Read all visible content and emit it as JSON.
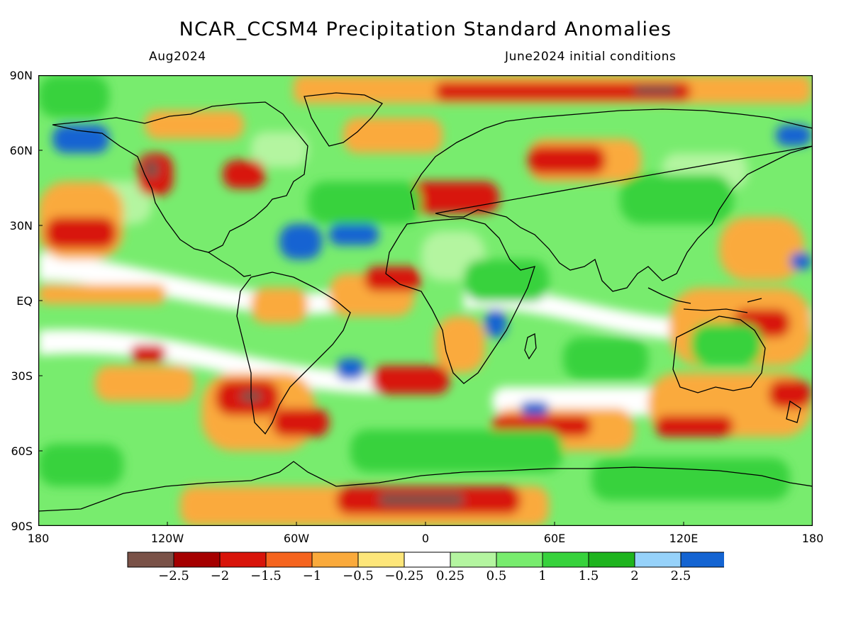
{
  "title": "NCAR_CCSM4 Precipitation Standard Anomalies",
  "valid_month": "Aug2024",
  "initial_conditions": "June2024 initial conditions",
  "lat_labels": [
    "90N",
    "60N",
    "30N",
    "EQ",
    "30S",
    "60S",
    "90S"
  ],
  "lon_labels": [
    "180",
    "120W",
    "60W",
    "0",
    "60E",
    "120E",
    "180"
  ],
  "colorbar": {
    "colors": [
      "#7a5248",
      "#a50000",
      "#d8140a",
      "#f5641e",
      "#faaa3c",
      "#fde67a",
      "#ffffff",
      "#b4f5a0",
      "#78ec6e",
      "#37d23c",
      "#1eb41e",
      "#96d2fa",
      "#1464d2"
    ],
    "labels": [
      "−2.5",
      "−2",
      "−1.5",
      "−1",
      "−0.5",
      "−0.25",
      "0.25",
      "0.5",
      "1",
      "1.5",
      "2",
      "2.5"
    ]
  }
}
